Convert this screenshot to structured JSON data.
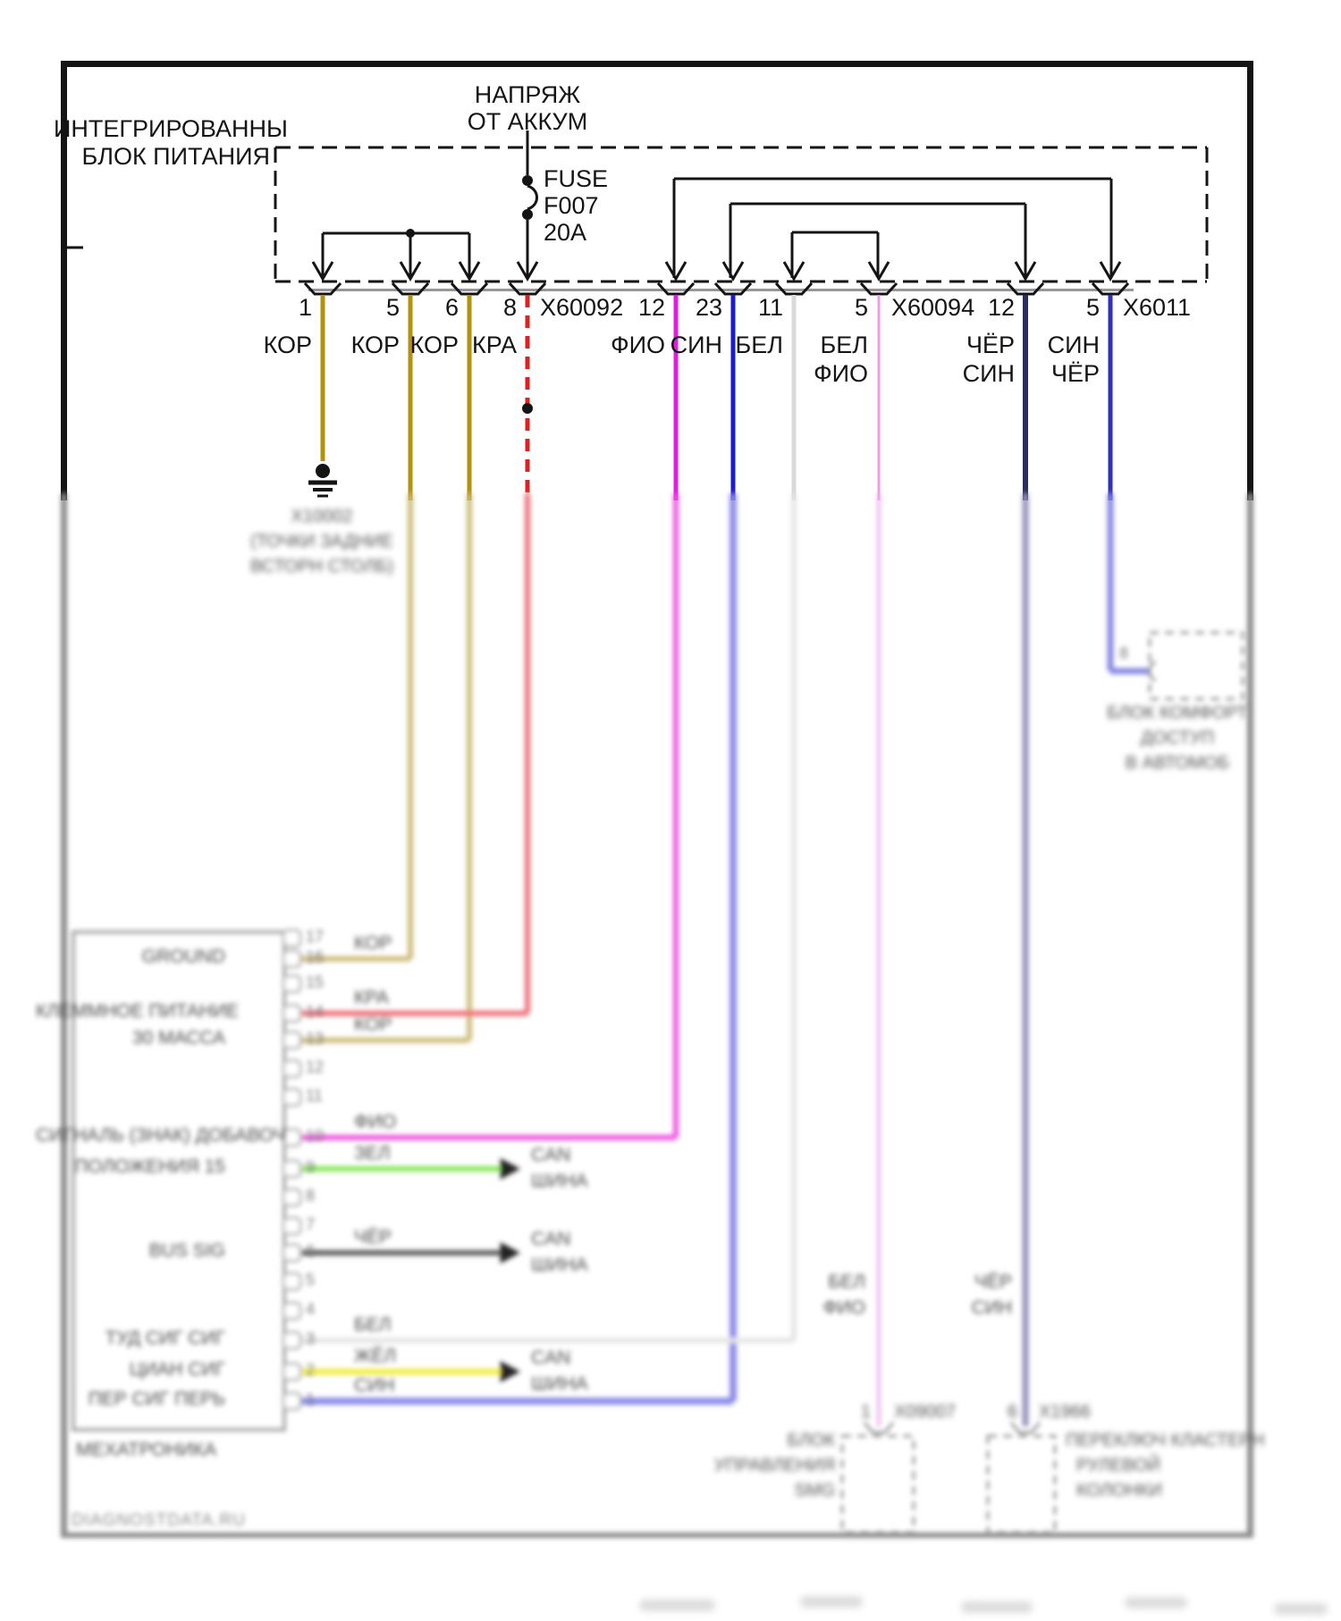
{
  "power": {
    "battery_line1": "НАПРЯЖ",
    "battery_line2": "ОТ АККУМ",
    "box_line1": "ИНТЕГРИРОВАННЫ",
    "box_line2": "БЛОК ПИТАНИЯ",
    "fuse_line1": "FUSE",
    "fuse_line2": "F007",
    "fuse_line3": "20A"
  },
  "connector_pins": [
    {
      "number": "1",
      "color_line1": "КОР"
    },
    {
      "number": "5",
      "color_line1": "КОР"
    },
    {
      "number": "6",
      "color_line1": "КОР"
    },
    {
      "number": "8",
      "color_line1": "КРА",
      "connector": "X60092"
    },
    {
      "number": "12",
      "color_line1": "ФИО"
    },
    {
      "number": "23",
      "color_line1": "СИН"
    },
    {
      "number": "11",
      "color_line1": "БЕЛ"
    },
    {
      "number": "5",
      "color_line1": "БЕЛ",
      "color_line2": "ФИО",
      "connector": "X60094"
    },
    {
      "number": "12",
      "color_line1": "ЧЁР",
      "color_line2": "СИН"
    },
    {
      "number": "5",
      "color_line1": "СИН",
      "color_line2": "ЧЁР",
      "connector": "X6011"
    }
  ],
  "colors": {
    "tan": "#b3930e",
    "red": "#df2020",
    "magenta": "#e31ce3",
    "blue": "#1c1ccf",
    "white_wire": "#d9d9d9",
    "pink": "#f09af0",
    "navy": "#2c2c5e",
    "blue2": "#3030c0",
    "pale_tan": "#cdbc7c",
    "pale_red": "#f07078",
    "pale_magenta": "#ee55e0",
    "pale_blue": "#8c8cea",
    "pale_grey": "#e4e4e4",
    "pale_pink": "#eeb2ee",
    "pale_navy": "#9494bc",
    "pale_blue2": "#8888e4",
    "green": "#84e858",
    "yellow": "#f2ee48",
    "dgrey": "#5a5a5a",
    "line": "#141414",
    "grey_line": "#979797",
    "frame_blur": "#8a8a8a",
    "stub": "#b5b5b5"
  },
  "blurred": {
    "ground_label_lines": [
      "X10002",
      "(ТОЧКИ ЗАДНИЕ",
      "ВСТОРН СТОЛБ)"
    ],
    "mech": {
      "row_labels": [
        "GROUND",
        "КЛЕММНОЕ ПИТАНИЕ",
        "30 МАССА",
        "СИГНАЛЬ (ЗНАК) ДОБАВОЧ",
        "ПОЛОЖЕНИЯ 15",
        "BUS SIG",
        "ТУД СИГ СИГ",
        "ЦИАН СИГ",
        "ПЕР СИГ ПЕРЬ"
      ],
      "wire_colors": [
        "КОР",
        "КРА",
        "КОР",
        "ФИО",
        "ЗЕЛ",
        "ЧЁР",
        "БЕЛ",
        "ЖЁЛ",
        "СИН"
      ],
      "stub_numbers": [
        "17",
        "16",
        "15",
        "14",
        "13",
        "12",
        "11",
        "10",
        "9",
        "8",
        "7",
        "6",
        "5",
        "4",
        "3",
        "2",
        "1"
      ],
      "box_label": "МЕХАТРОНИКА"
    },
    "can_line1": "CAN",
    "can_line2": "ШИНА",
    "mid_left_line1": "БЕЛ",
    "mid_left_line2": "ФИО",
    "mid_right_line1": "ЧЁР",
    "mid_right_line2": "СИН",
    "smg": {
      "pin": "1",
      "connector": "X09007",
      "label_lines": [
        "БЛОК",
        "УПРАВЛЕНИЯ",
        "SMG"
      ]
    },
    "szl": {
      "pin": "6",
      "connector": "X1966",
      "label_lines": [
        "ПЕРЕКЛЮЧ КЛАСТЕРН",
        "РУЛЕВОЙ",
        "КОЛОНКИ"
      ]
    },
    "comfort": {
      "pin": "8",
      "label_lines": [
        "БЛОК КОМФОРТ",
        "ДОСТУП",
        "В АВТОМОБ"
      ]
    },
    "watermark": "DIAGNOSTDATA.RU"
  }
}
